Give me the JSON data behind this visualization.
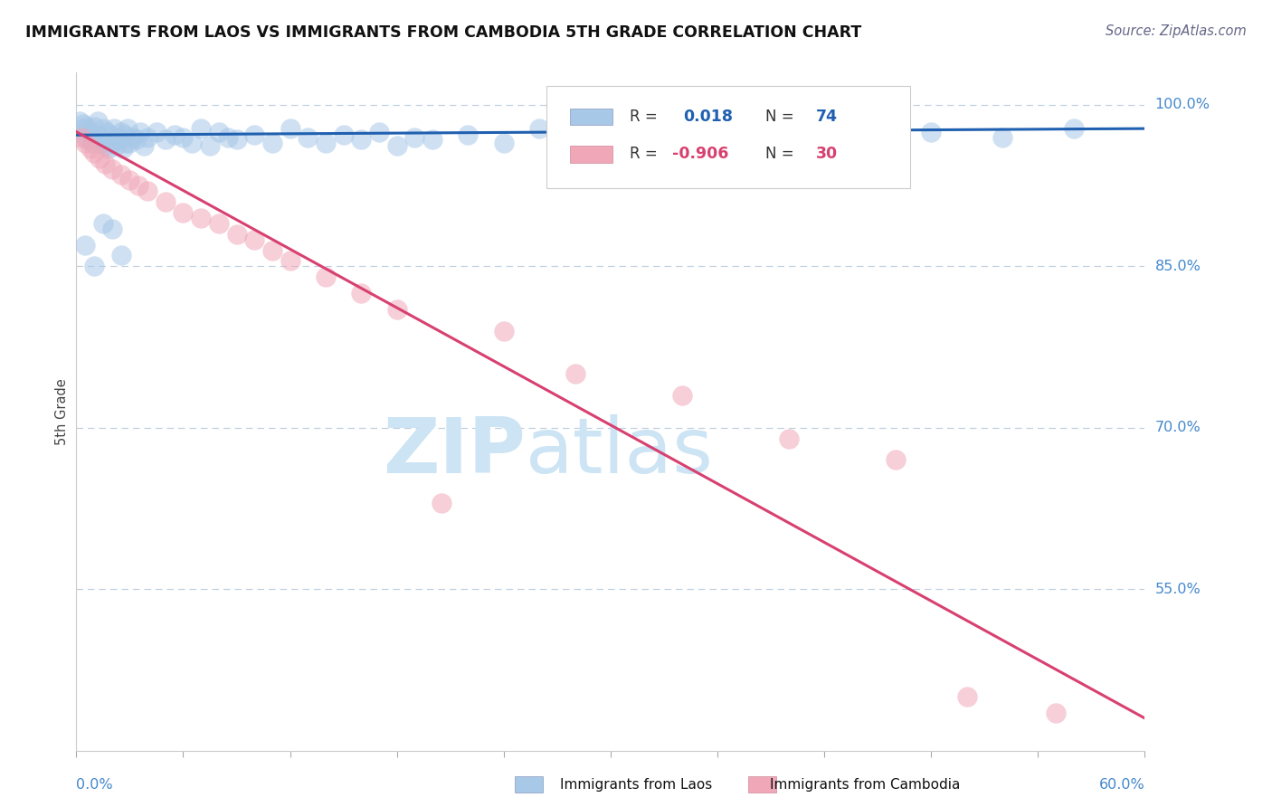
{
  "title": "IMMIGRANTS FROM LAOS VS IMMIGRANTS FROM CAMBODIA 5TH GRADE CORRELATION CHART",
  "source_text": "Source: ZipAtlas.com",
  "ylabel": "5th Grade",
  "y_ticks": [
    55.0,
    70.0,
    85.0,
    100.0
  ],
  "y_tick_labels": [
    "55.0%",
    "70.0%",
    "85.0%",
    "100.0%"
  ],
  "xmin": 0.0,
  "xmax": 60.0,
  "ymin": 40.0,
  "ymax": 103.0,
  "laos_R": 0.018,
  "laos_N": 74,
  "cambodia_R": -0.906,
  "cambodia_N": 30,
  "laos_color": "#a8c8e8",
  "cambodia_color": "#f0a8b8",
  "laos_line_color": "#2060b0",
  "cambodia_line_color": "#d84070",
  "watermark_color": "#cce4f4",
  "laos_scatter_x": [
    0.2,
    0.3,
    0.4,
    0.5,
    0.6,
    0.7,
    0.8,
    0.9,
    1.0,
    1.0,
    1.1,
    1.2,
    1.2,
    1.3,
    1.4,
    1.5,
    1.6,
    1.7,
    1.8,
    1.9,
    2.0,
    2.1,
    2.2,
    2.3,
    2.4,
    2.5,
    2.6,
    2.7,
    2.8,
    2.9,
    3.0,
    3.2,
    3.4,
    3.6,
    3.8,
    4.0,
    4.5,
    5.0,
    5.5,
    6.0,
    6.5,
    7.0,
    7.5,
    8.0,
    8.5,
    9.0,
    10.0,
    11.0,
    12.0,
    13.0,
    14.0,
    15.0,
    16.0,
    17.0,
    18.0,
    19.0,
    20.0,
    22.0,
    24.0,
    26.0,
    28.0,
    30.0,
    33.0,
    36.0,
    40.0,
    44.0,
    48.0,
    52.0,
    56.0,
    0.5,
    1.0,
    1.5,
    2.0,
    2.5
  ],
  "laos_scatter_y": [
    98.5,
    97.8,
    98.2,
    97.0,
    98.0,
    96.8,
    97.5,
    96.5,
    97.0,
    98.0,
    97.2,
    96.8,
    98.5,
    97.0,
    96.5,
    97.8,
    96.2,
    97.5,
    96.0,
    97.2,
    96.5,
    97.8,
    96.2,
    97.0,
    96.8,
    97.5,
    96.0,
    97.2,
    96.5,
    97.8,
    96.5,
    97.0,
    96.8,
    97.5,
    96.2,
    97.0,
    97.5,
    96.8,
    97.2,
    97.0,
    96.5,
    97.8,
    96.2,
    97.5,
    97.0,
    96.8,
    97.2,
    96.5,
    97.8,
    97.0,
    96.5,
    97.2,
    96.8,
    97.5,
    96.2,
    97.0,
    96.8,
    97.2,
    96.5,
    97.8,
    97.0,
    97.2,
    96.8,
    97.5,
    97.0,
    97.2,
    97.5,
    97.0,
    97.8,
    87.0,
    85.0,
    89.0,
    88.5,
    86.0
  ],
  "cambodia_scatter_x": [
    0.3,
    0.5,
    0.8,
    1.0,
    1.3,
    1.6,
    2.0,
    2.5,
    3.0,
    3.5,
    4.0,
    5.0,
    6.0,
    7.0,
    8.0,
    9.0,
    10.0,
    11.0,
    12.0,
    14.0,
    16.0,
    18.0,
    20.5,
    24.0,
    28.0,
    34.0,
    40.0,
    46.0,
    50.0,
    55.0
  ],
  "cambodia_scatter_y": [
    97.0,
    96.5,
    96.0,
    95.5,
    95.0,
    94.5,
    94.0,
    93.5,
    93.0,
    92.5,
    92.0,
    91.0,
    90.0,
    89.5,
    89.0,
    88.0,
    87.5,
    86.5,
    85.5,
    84.0,
    82.5,
    81.0,
    63.0,
    79.0,
    75.0,
    73.0,
    69.0,
    67.0,
    45.0,
    43.5
  ]
}
